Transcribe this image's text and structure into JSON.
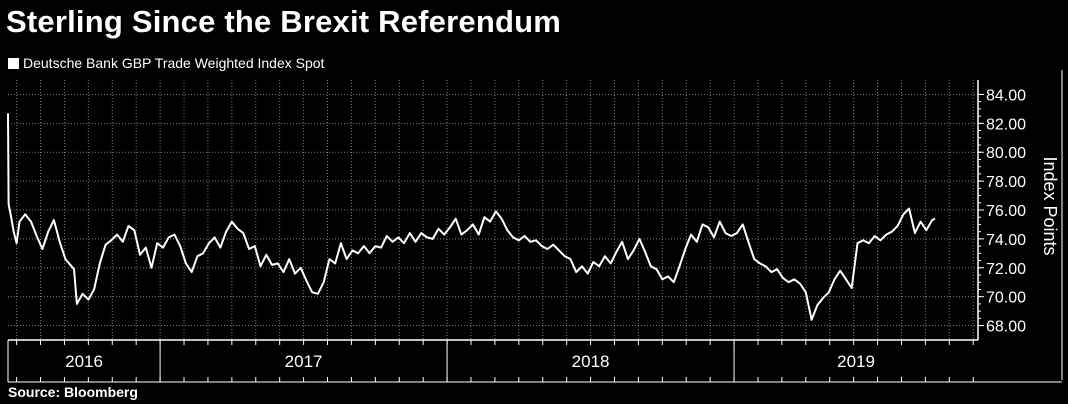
{
  "chart_data": {
    "type": "line",
    "title": "Sterling Since the Brexit Referendum",
    "legend": "Deutsche Bank GBP Trade Weighted Index Spot",
    "source": "Source: Bloomberg",
    "ylabel": "Index Points",
    "xlabel": "",
    "ylim": [
      67.0,
      85.0
    ],
    "yticks": [
      "68.00",
      "70.00",
      "72.00",
      "74.00",
      "76.00",
      "78.00",
      "80.00",
      "82.00",
      "84.00"
    ],
    "xlim": [
      2016.47,
      2019.85
    ],
    "year_labels": [
      {
        "label": "2016",
        "x": 2016.735
      },
      {
        "label": "2017",
        "x": 2017.5
      },
      {
        "label": "2018",
        "x": 2018.5
      },
      {
        "label": "2019",
        "x": 2019.425
      }
    ],
    "year_boundaries": [
      2017.0,
      2018.0,
      2019.0
    ],
    "series": [
      {
        "name": "Deutsche Bank GBP Trade Weighted Index Spot",
        "color": "#ffffff",
        "points": [
          [
            2016.47,
            82.7
          ],
          [
            2016.472,
            76.4
          ],
          [
            2016.48,
            75.6
          ],
          [
            2016.49,
            74.5
          ],
          [
            2016.5,
            73.7
          ],
          [
            2016.51,
            75.2
          ],
          [
            2016.53,
            75.7
          ],
          [
            2016.55,
            75.2
          ],
          [
            2016.57,
            74.2
          ],
          [
            2016.59,
            73.3
          ],
          [
            2016.61,
            74.5
          ],
          [
            2016.63,
            75.3
          ],
          [
            2016.65,
            73.8
          ],
          [
            2016.67,
            72.6
          ],
          [
            2016.7,
            71.9
          ],
          [
            2016.71,
            69.5
          ],
          [
            2016.73,
            70.2
          ],
          [
            2016.75,
            69.8
          ],
          [
            2016.77,
            70.5
          ],
          [
            2016.79,
            72.3
          ],
          [
            2016.81,
            73.6
          ],
          [
            2016.83,
            73.9
          ],
          [
            2016.85,
            74.3
          ],
          [
            2016.87,
            73.8
          ],
          [
            2016.89,
            74.9
          ],
          [
            2016.91,
            74.6
          ],
          [
            2016.93,
            72.9
          ],
          [
            2016.95,
            73.4
          ],
          [
            2016.97,
            72.0
          ],
          [
            2016.99,
            73.7
          ],
          [
            2017.01,
            73.4
          ],
          [
            2017.03,
            74.1
          ],
          [
            2017.05,
            74.3
          ],
          [
            2017.07,
            73.5
          ],
          [
            2017.09,
            72.3
          ],
          [
            2017.11,
            71.7
          ],
          [
            2017.13,
            72.8
          ],
          [
            2017.15,
            73.0
          ],
          [
            2017.17,
            73.7
          ],
          [
            2017.19,
            74.1
          ],
          [
            2017.21,
            73.4
          ],
          [
            2017.23,
            74.5
          ],
          [
            2017.25,
            75.2
          ],
          [
            2017.27,
            74.7
          ],
          [
            2017.29,
            74.4
          ],
          [
            2017.31,
            73.3
          ],
          [
            2017.33,
            73.5
          ],
          [
            2017.35,
            72.1
          ],
          [
            2017.37,
            72.9
          ],
          [
            2017.39,
            72.2
          ],
          [
            2017.41,
            72.3
          ],
          [
            2017.43,
            71.7
          ],
          [
            2017.45,
            72.6
          ],
          [
            2017.47,
            71.6
          ],
          [
            2017.49,
            72.0
          ],
          [
            2017.51,
            71.1
          ],
          [
            2017.53,
            70.3
          ],
          [
            2017.55,
            70.2
          ],
          [
            2017.57,
            71.0
          ],
          [
            2017.59,
            72.6
          ],
          [
            2017.61,
            72.3
          ],
          [
            2017.63,
            73.7
          ],
          [
            2017.65,
            72.6
          ],
          [
            2017.67,
            73.2
          ],
          [
            2017.69,
            73.0
          ],
          [
            2017.71,
            73.5
          ],
          [
            2017.73,
            73.0
          ],
          [
            2017.75,
            73.5
          ],
          [
            2017.77,
            73.4
          ],
          [
            2017.79,
            74.2
          ],
          [
            2017.81,
            73.8
          ],
          [
            2017.83,
            74.1
          ],
          [
            2017.85,
            73.7
          ],
          [
            2017.87,
            74.4
          ],
          [
            2017.89,
            73.8
          ],
          [
            2017.91,
            74.4
          ],
          [
            2017.93,
            74.1
          ],
          [
            2017.95,
            74.0
          ],
          [
            2017.97,
            74.7
          ],
          [
            2017.99,
            74.3
          ],
          [
            2018.01,
            74.8
          ],
          [
            2018.03,
            75.4
          ],
          [
            2018.05,
            74.3
          ],
          [
            2018.07,
            74.6
          ],
          [
            2018.09,
            75.0
          ],
          [
            2018.11,
            74.3
          ],
          [
            2018.13,
            75.5
          ],
          [
            2018.15,
            75.2
          ],
          [
            2018.17,
            75.9
          ],
          [
            2018.19,
            75.4
          ],
          [
            2018.21,
            74.6
          ],
          [
            2018.23,
            74.1
          ],
          [
            2018.25,
            73.9
          ],
          [
            2018.27,
            74.2
          ],
          [
            2018.29,
            73.8
          ],
          [
            2018.31,
            73.9
          ],
          [
            2018.33,
            73.5
          ],
          [
            2018.35,
            73.3
          ],
          [
            2018.37,
            73.6
          ],
          [
            2018.39,
            73.2
          ],
          [
            2018.41,
            72.8
          ],
          [
            2018.43,
            72.6
          ],
          [
            2018.45,
            71.7
          ],
          [
            2018.47,
            72.1
          ],
          [
            2018.49,
            71.6
          ],
          [
            2018.51,
            72.4
          ],
          [
            2018.53,
            72.1
          ],
          [
            2018.55,
            72.8
          ],
          [
            2018.57,
            72.3
          ],
          [
            2018.59,
            73.1
          ],
          [
            2018.61,
            73.8
          ],
          [
            2018.63,
            72.6
          ],
          [
            2018.65,
            73.2
          ],
          [
            2018.67,
            74.0
          ],
          [
            2018.69,
            73.1
          ],
          [
            2018.71,
            72.1
          ],
          [
            2018.73,
            71.9
          ],
          [
            2018.75,
            71.2
          ],
          [
            2018.77,
            71.4
          ],
          [
            2018.79,
            71.0
          ],
          [
            2018.81,
            72.1
          ],
          [
            2018.83,
            73.3
          ],
          [
            2018.85,
            74.3
          ],
          [
            2018.87,
            73.8
          ],
          [
            2018.89,
            75.0
          ],
          [
            2018.91,
            74.8
          ],
          [
            2018.93,
            74.1
          ],
          [
            2018.95,
            75.2
          ],
          [
            2018.97,
            74.4
          ],
          [
            2018.99,
            74.2
          ],
          [
            2019.01,
            74.4
          ],
          [
            2019.03,
            75.0
          ],
          [
            2019.05,
            73.8
          ],
          [
            2019.07,
            72.6
          ],
          [
            2019.09,
            72.3
          ],
          [
            2019.11,
            72.1
          ],
          [
            2019.13,
            71.7
          ],
          [
            2019.15,
            71.9
          ],
          [
            2019.17,
            71.3
          ],
          [
            2019.19,
            71.0
          ],
          [
            2019.21,
            71.2
          ],
          [
            2019.23,
            70.9
          ],
          [
            2019.25,
            70.3
          ],
          [
            2019.27,
            68.4
          ],
          [
            2019.29,
            69.4
          ],
          [
            2019.31,
            69.9
          ],
          [
            2019.33,
            70.3
          ],
          [
            2019.35,
            71.2
          ],
          [
            2019.37,
            71.8
          ],
          [
            2019.39,
            71.2
          ],
          [
            2019.41,
            70.6
          ],
          [
            2019.43,
            73.7
          ],
          [
            2019.45,
            73.9
          ],
          [
            2019.47,
            73.7
          ],
          [
            2019.49,
            74.2
          ],
          [
            2019.51,
            73.9
          ],
          [
            2019.53,
            74.3
          ],
          [
            2019.55,
            74.5
          ],
          [
            2019.57,
            74.9
          ],
          [
            2019.59,
            75.7
          ],
          [
            2019.61,
            76.1
          ],
          [
            2019.63,
            74.4
          ],
          [
            2019.65,
            75.2
          ],
          [
            2019.67,
            74.6
          ],
          [
            2019.69,
            75.3
          ],
          [
            2019.7,
            75.4
          ]
        ]
      }
    ]
  }
}
